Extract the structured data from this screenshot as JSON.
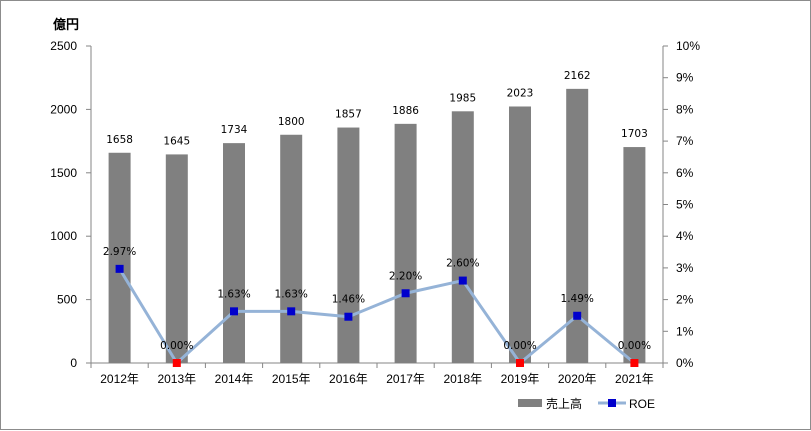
{
  "chart_data": {
    "type": "bar",
    "unit_label": "億円",
    "categories": [
      "2012年",
      "2013年",
      "2014年",
      "2015年",
      "2016年",
      "2017年",
      "2018年",
      "2019年",
      "2020年",
      "2021年"
    ],
    "series": [
      {
        "name": "売上高",
        "type": "bar",
        "axis": "left",
        "color": "#808080",
        "values": [
          1658,
          1645,
          1734,
          1800,
          1857,
          1886,
          1985,
          2023,
          2162,
          1703
        ],
        "labels": [
          "1658",
          "1645",
          "1734",
          "1800",
          "1857",
          "1886",
          "1985",
          "2023",
          "2162",
          "1703"
        ]
      },
      {
        "name": "ROE",
        "type": "line",
        "axis": "right",
        "line_color": "#95b3d7",
        "marker_color": "#0000cc",
        "zero_marker_color": "#ff0000",
        "values": [
          2.97,
          0.0,
          1.63,
          1.63,
          1.46,
          2.2,
          2.6,
          0.0,
          1.49,
          0.0
        ],
        "labels": [
          "2.97%",
          "0.00%",
          "1.63%",
          "1.63%",
          "1.46%",
          "2.20%",
          "2.60%",
          "0.00%",
          "1.49%",
          "0.00%"
        ]
      }
    ],
    "y_left": {
      "min": 0,
      "max": 2500,
      "ticks": [
        0,
        500,
        1000,
        1500,
        2000,
        2500
      ],
      "tick_labels": [
        "0",
        "500",
        "1000",
        "1500",
        "2000",
        "2500"
      ]
    },
    "y_right": {
      "min": 0,
      "max": 10,
      "ticks": [
        0,
        1,
        2,
        3,
        4,
        5,
        6,
        7,
        8,
        9,
        10
      ],
      "tick_labels": [
        "0%",
        "1%",
        "2%",
        "3%",
        "4%",
        "5%",
        "6%",
        "7%",
        "8%",
        "9%",
        "10%"
      ]
    },
    "grid": false,
    "legend_position": "bottom-right",
    "legend": [
      {
        "name": "売上高",
        "kind": "bar"
      },
      {
        "name": "ROE",
        "kind": "line"
      }
    ]
  }
}
